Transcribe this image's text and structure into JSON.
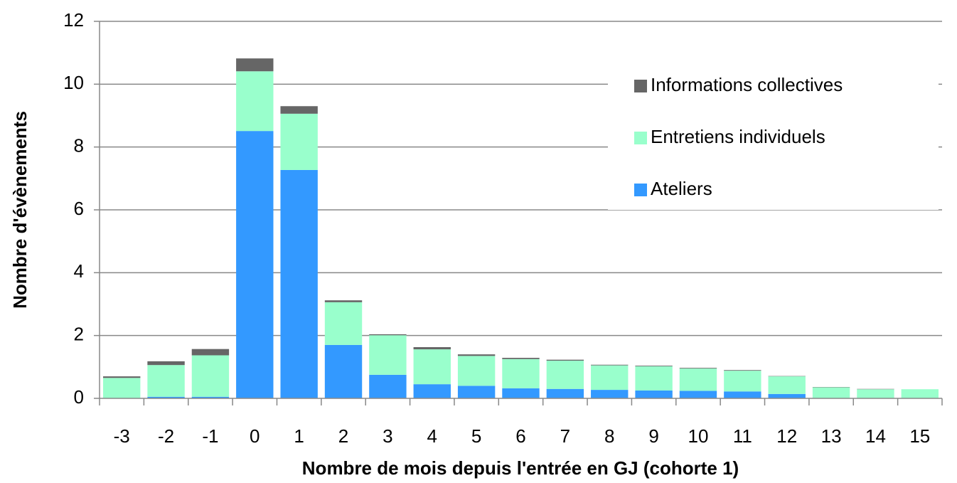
{
  "chart_data": {
    "type": "stacked_bar",
    "xlabel": "Nombre de mois depuis l'entrée en GJ (cohorte 1)",
    "ylabel": "Nombre d'évènements",
    "categories": [
      "-3",
      "-2",
      "-1",
      "0",
      "1",
      "2",
      "3",
      "4",
      "5",
      "6",
      "7",
      "8",
      "9",
      "10",
      "11",
      "12",
      "13",
      "14",
      "15"
    ],
    "series": [
      {
        "name": "Ateliers",
        "color": "#3399ff",
        "values": [
          0,
          0.05,
          0.05,
          8.51,
          7.27,
          1.7,
          0.75,
          0.45,
          0.4,
          0.32,
          0.3,
          0.27,
          0.25,
          0.24,
          0.22,
          0.14,
          0,
          0,
          0
        ]
      },
      {
        "name": "Entretiens individuels",
        "color": "#99ffcc",
        "values": [
          0.65,
          1.01,
          1.32,
          1.9,
          1.79,
          1.36,
          1.26,
          1.11,
          0.95,
          0.93,
          0.9,
          0.78,
          0.77,
          0.71,
          0.66,
          0.56,
          0.35,
          0.29,
          0.29
        ]
      },
      {
        "name": "Informations collectives",
        "color": "#666666",
        "values": [
          0.05,
          0.12,
          0.2,
          0.41,
          0.24,
          0.06,
          0.03,
          0.07,
          0.05,
          0.04,
          0.03,
          0.02,
          0.02,
          0.02,
          0.02,
          0.01,
          0.01,
          0.01,
          0
        ]
      }
    ],
    "ylim": [
      0,
      12
    ],
    "yticks": [
      0,
      2,
      4,
      6,
      8,
      10,
      12
    ],
    "grid": true,
    "legend": "upper right"
  }
}
